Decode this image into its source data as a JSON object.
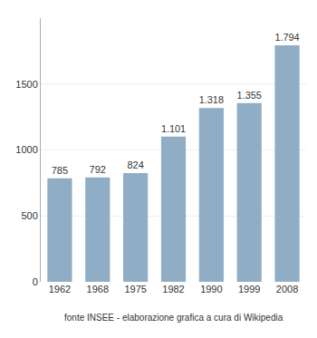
{
  "chart_data": {
    "type": "bar",
    "categories": [
      "1962",
      "1968",
      "1975",
      "1982",
      "1990",
      "1999",
      "2008"
    ],
    "values": [
      785,
      792,
      824,
      1101,
      1318,
      1355,
      1794
    ],
    "value_labels": [
      "785",
      "792",
      "824",
      "1.101",
      "1.318",
      "1.355",
      "1.794"
    ],
    "data_labels": true,
    "color": "#8faec5",
    "ylim": [
      0,
      2000
    ],
    "yticks": [
      0,
      500,
      1000,
      1500
    ],
    "grid": true,
    "annotations": [
      "fonte INSEE - elaborazione grafica a cura di Wikipedia"
    ]
  }
}
